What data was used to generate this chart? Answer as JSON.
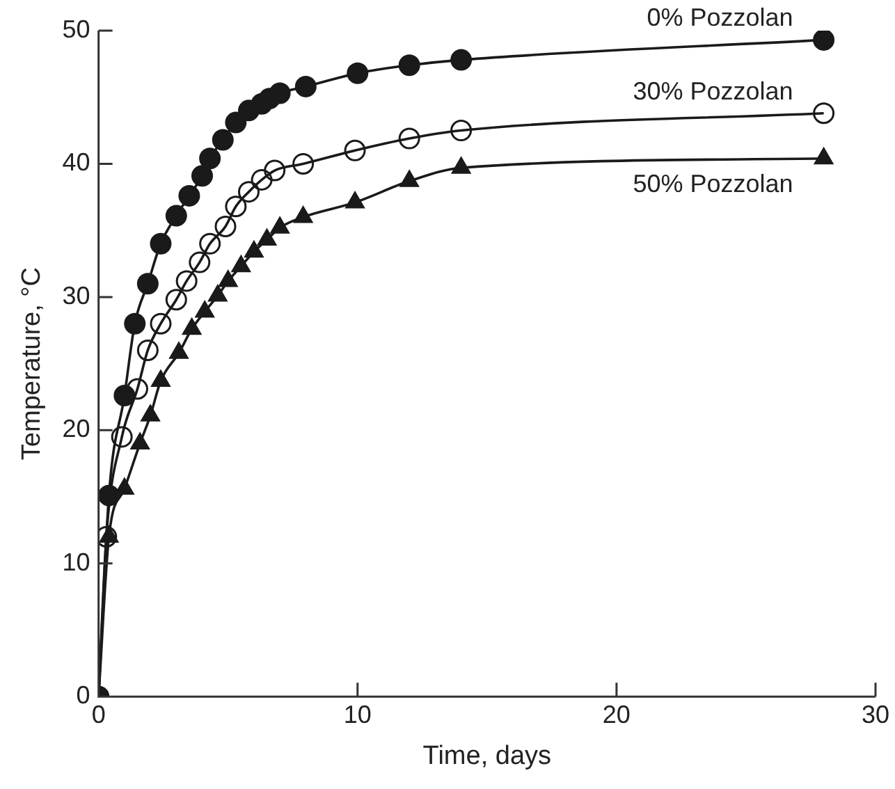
{
  "chart_data": {
    "type": "line",
    "xlabel": "Time, days",
    "ylabel": "Temperature, °C",
    "xlim": [
      0,
      30
    ],
    "xticks": [
      0,
      10,
      20,
      30
    ],
    "ylim": [
      0,
      50
    ],
    "yticks": [
      0,
      10,
      20,
      30,
      40,
      50
    ],
    "grid": false,
    "legend": false,
    "line_style": "solid",
    "series": [
      {
        "name": "0% Pozzolan",
        "color": "#1a1a1a",
        "marker": "circle",
        "x": [
          0,
          0.4,
          1.0,
          1.4,
          1.9,
          2.4,
          3.0,
          3.5,
          4.0,
          4.3,
          4.8,
          5.3,
          5.8,
          6.3,
          6.6,
          7.0,
          8.0,
          10,
          12,
          14,
          28
        ],
        "values": [
          0,
          15.1,
          22.6,
          28.0,
          31.0,
          34.0,
          36.1,
          37.6,
          39.1,
          40.4,
          41.8,
          43.1,
          44.0,
          44.5,
          44.9,
          45.3,
          45.8,
          46.8,
          47.4,
          47.8,
          49.3
        ]
      },
      {
        "name": "30% Pozzolan",
        "color": "#1a1a1a",
        "marker": "circle-open",
        "x": [
          0,
          0.3,
          0.9,
          1.5,
          1.9,
          2.4,
          3.0,
          3.4,
          3.9,
          4.3,
          4.9,
          5.3,
          5.8,
          6.3,
          6.8,
          7.9,
          9.9,
          12,
          14,
          28
        ],
        "values": [
          0,
          12.0,
          19.5,
          23.1,
          26.0,
          28.0,
          29.8,
          31.2,
          32.6,
          34.0,
          35.3,
          36.8,
          37.9,
          38.8,
          39.5,
          40.0,
          41.0,
          41.9,
          42.5,
          43.8
        ]
      },
      {
        "name": "50% Pozzolan",
        "color": "#1a1a1a",
        "marker": "triangle",
        "x": [
          0,
          0.4,
          1.0,
          1.6,
          2.0,
          2.4,
          3.1,
          3.6,
          4.1,
          4.6,
          5.0,
          5.5,
          6.0,
          6.5,
          7.0,
          7.9,
          9.9,
          12,
          14,
          28
        ],
        "values": [
          0,
          12.0,
          15.6,
          19.0,
          21.1,
          23.7,
          25.8,
          27.6,
          28.9,
          30.1,
          31.2,
          32.3,
          33.4,
          34.3,
          35.2,
          36.0,
          37.1,
          38.7,
          39.7,
          40.4
        ]
      }
    ]
  }
}
